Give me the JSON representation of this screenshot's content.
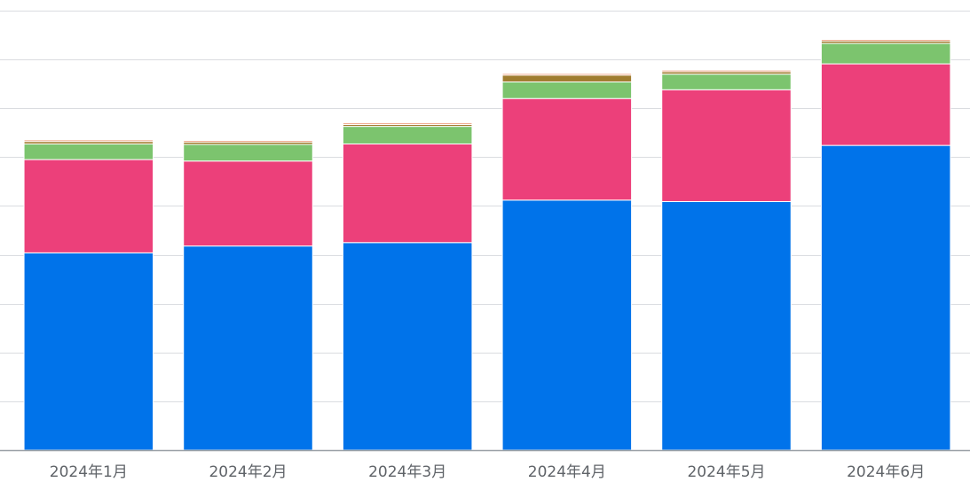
{
  "chart_data": {
    "type": "bar",
    "stacked": true,
    "categories": [
      "2024年1月",
      "2024年2月",
      "2024年3月",
      "2024年4月",
      "2024年5月",
      "2024年6月"
    ],
    "ylim": [
      0,
      90
    ],
    "grid": true,
    "legend": "none",
    "series": [
      {
        "color": "#0073ea",
        "values": [
          40.4,
          41.8,
          42.5,
          51.2,
          50.9,
          62.4
        ]
      },
      {
        "color": "#ec407a",
        "values": [
          19.1,
          17.4,
          20.2,
          20.8,
          22.9,
          16.7
        ]
      },
      {
        "color": "#7cc46e",
        "values": [
          3.2,
          3.4,
          3.6,
          3.4,
          3.2,
          4.2
        ]
      },
      {
        "color": "#a07d2f",
        "values": [
          0.5,
          0.5,
          0.4,
          1.4,
          0.5,
          0.5
        ]
      },
      {
        "color": "#e8835a",
        "values": [
          0.3,
          0.3,
          0.3,
          0.3,
          0.3,
          0.3
        ]
      }
    ]
  }
}
